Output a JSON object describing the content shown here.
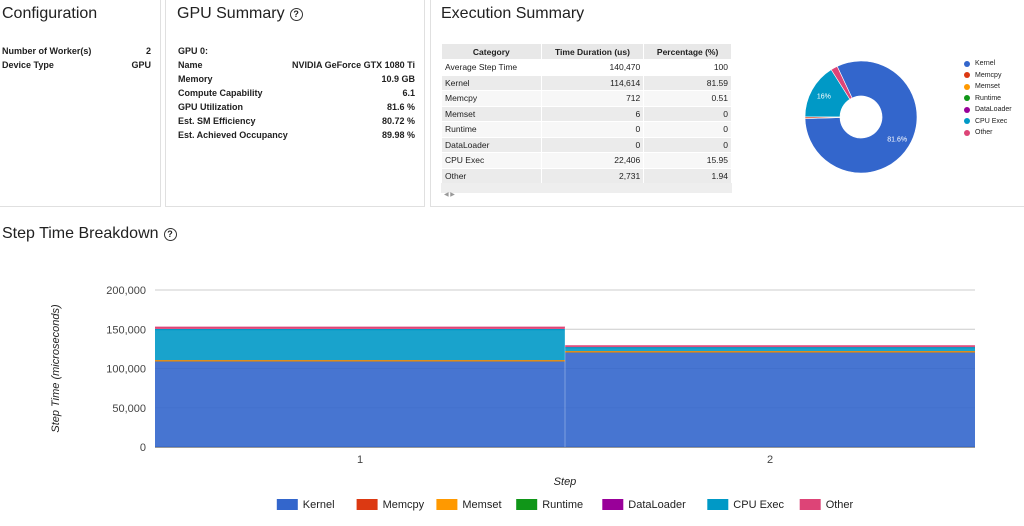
{
  "config": {
    "title": "Configuration",
    "rows": [
      {
        "key": "Number of Worker(s)",
        "value": "2"
      },
      {
        "key": "Device Type",
        "value": "GPU"
      }
    ]
  },
  "gpu": {
    "title": "GPU Summary",
    "help_icon": "?",
    "gpu_label": "GPU 0:",
    "rows": [
      {
        "key": "Name",
        "value": "NVIDIA GeForce GTX 1080 Ti"
      },
      {
        "key": "Memory",
        "value": "10.9 GB"
      },
      {
        "key": "Compute Capability",
        "value": "6.1"
      },
      {
        "key": "GPU Utilization",
        "value": "81.6 %"
      },
      {
        "key": "Est. SM Efficiency",
        "value": "80.72 %"
      },
      {
        "key": "Est. Achieved Occupancy",
        "value": "89.98 %"
      }
    ]
  },
  "execution": {
    "title": "Execution Summary",
    "columns": [
      "Category",
      "Time Duration (us)",
      "Percentage (%)"
    ],
    "rows": [
      {
        "category": "Average Step Time",
        "duration": "140,470",
        "percent": "100"
      },
      {
        "category": "Kernel",
        "duration": "114,614",
        "percent": "81.59"
      },
      {
        "category": "Memcpy",
        "duration": "712",
        "percent": "0.51"
      },
      {
        "category": "Memset",
        "duration": "6",
        "percent": "0"
      },
      {
        "category": "Runtime",
        "duration": "0",
        "percent": "0"
      },
      {
        "category": "DataLoader",
        "duration": "0",
        "percent": "0"
      },
      {
        "category": "CPU Exec",
        "duration": "22,406",
        "percent": "15.95"
      },
      {
        "category": "Other",
        "duration": "2,731",
        "percent": "1.94"
      }
    ],
    "scroll_arrows": "◀ ▶"
  },
  "pie": {
    "slices": [
      {
        "name": "Kernel",
        "value": 81.6,
        "color": "#3366cc",
        "label": "81.6%"
      },
      {
        "name": "Memcpy",
        "value": 0.51,
        "color": "#dc3912",
        "label": ""
      },
      {
        "name": "Memset",
        "value": 0.01,
        "color": "#ff9900",
        "label": ""
      },
      {
        "name": "Runtime",
        "value": 0,
        "color": "#109618",
        "label": ""
      },
      {
        "name": "DataLoader",
        "value": 0,
        "color": "#990099",
        "label": ""
      },
      {
        "name": "CPU Exec",
        "value": 16,
        "color": "#0099c6",
        "label": "16%"
      },
      {
        "name": "Other",
        "value": 1.94,
        "color": "#dd4477",
        "label": ""
      }
    ]
  },
  "step": {
    "title": "Step Time Breakdown",
    "help_icon": "?"
  },
  "chart_data": {
    "type": "area",
    "stacked": true,
    "x": [
      "1",
      "2"
    ],
    "xlabel": "Step",
    "ylabel": "Step Time (microseconds)",
    "ylim": [
      0,
      200000
    ],
    "yticks": [
      "0",
      "50,000",
      "100,000",
      "150,000",
      "200,000"
    ],
    "grid": true,
    "legend_position": "bottom",
    "series": [
      {
        "name": "Kernel",
        "color": "#3366cc",
        "values": [
          109000,
          120500
        ]
      },
      {
        "name": "Memcpy",
        "color": "#dc3912",
        "values": [
          700,
          700
        ]
      },
      {
        "name": "Memset",
        "color": "#ff9900",
        "values": [
          6,
          6
        ]
      },
      {
        "name": "Runtime",
        "color": "#109618",
        "values": [
          0,
          0
        ]
      },
      {
        "name": "DataLoader",
        "color": "#990099",
        "values": [
          0,
          0
        ]
      },
      {
        "name": "CPU Exec",
        "color": "#0099c6",
        "values": [
          39800,
          5200
        ]
      },
      {
        "name": "Other",
        "color": "#dd4477",
        "values": [
          3000,
          2500
        ]
      }
    ]
  }
}
